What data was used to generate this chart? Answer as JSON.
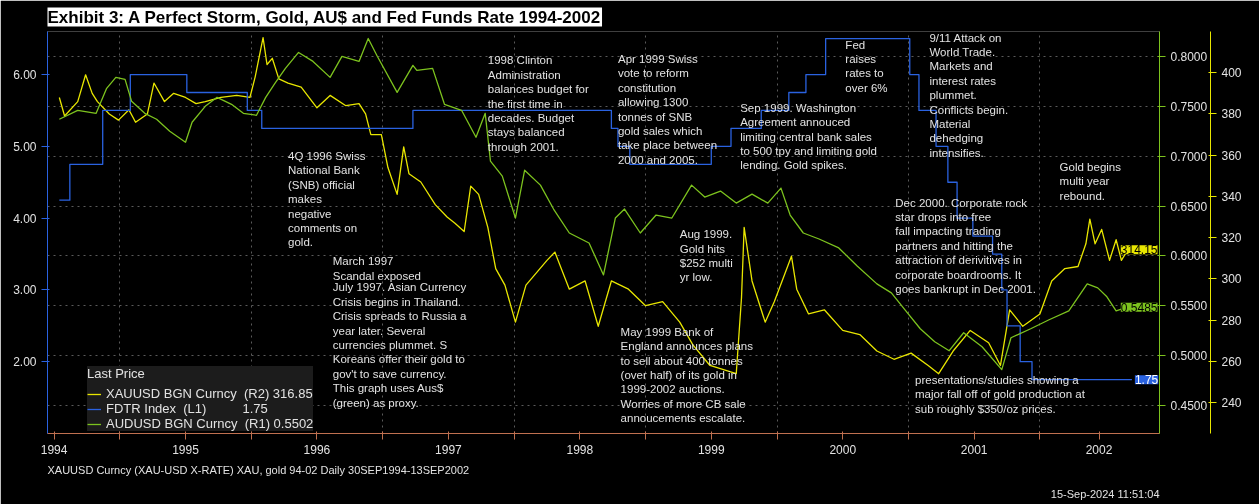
{
  "chart_data": {
    "type": "line",
    "title": "Exhibit 3: A Perfect Storm, Gold, AU$ and Fed Funds Rate 1994-2002",
    "legend_title": "Last Price",
    "legend": "bottom left",
    "grid": true,
    "xlim": [
      1994.45,
      2002.91
    ],
    "xticks": [
      {
        "value": 1994.5,
        "label": "1994"
      },
      {
        "value": 1995,
        "label": null
      },
      {
        "value": 1995.5,
        "label": "1995"
      },
      {
        "value": 1996,
        "label": null
      },
      {
        "value": 1996.5,
        "label": "1996"
      },
      {
        "value": 1997,
        "label": null
      },
      {
        "value": 1997.5,
        "label": "1997"
      },
      {
        "value": 1998,
        "label": null
      },
      {
        "value": 1998.5,
        "label": "1998"
      },
      {
        "value": 1999,
        "label": null
      },
      {
        "value": 1999.5,
        "label": "1999"
      },
      {
        "value": 2000,
        "label": null
      },
      {
        "value": 2000.5,
        "label": "2000"
      },
      {
        "value": 2001,
        "label": null
      },
      {
        "value": 2001.5,
        "label": "2001"
      },
      {
        "value": 2002,
        "label": null
      },
      {
        "value": 2002.45,
        "label": "2002"
      }
    ],
    "ylim": [
      1.0,
      6.6
    ],
    "yticks": [
      {
        "value": 2,
        "label": "2.00"
      },
      {
        "value": 3,
        "label": "3.00"
      },
      {
        "value": 4,
        "label": "4.00"
      },
      {
        "value": 5,
        "label": "5.00"
      },
      {
        "value": 6,
        "label": "6.00"
      }
    ],
    "y2lim": [
      0.422,
      0.825
    ],
    "y2ticks": [
      {
        "value": 0.45,
        "label": "0.4500"
      },
      {
        "value": 0.5,
        "label": "0.5000"
      },
      {
        "value": 0.55,
        "label": "0.5500"
      },
      {
        "value": 0.6,
        "label": "0.6000"
      },
      {
        "value": 0.65,
        "label": "0.6500"
      },
      {
        "value": 0.7,
        "label": "0.7000"
      },
      {
        "value": 0.75,
        "label": "0.7500"
      },
      {
        "value": 0.8,
        "label": "0.8000"
      }
    ],
    "y3lim": [
      225,
      420
    ],
    "y3ticks": [
      240,
      260,
      280,
      300,
      320,
      340,
      360,
      380,
      400
    ],
    "series": [
      {
        "name": "XAUUSD BGN Curncy  (R2) 316.85",
        "color": "#e8e600",
        "axis": "y3",
        "x": [
          1994.54,
          1994.58,
          1994.68,
          1994.74,
          1994.79,
          1994.83,
          1994.92,
          1994.99,
          1995.07,
          1995.12,
          1995.21,
          1995.26,
          1995.34,
          1995.41,
          1995.5,
          1995.58,
          1995.65,
          1995.77,
          1995.89,
          1995.99,
          1996.03,
          1996.09,
          1996.12,
          1996.16,
          1996.21,
          1996.28,
          1996.38,
          1996.5,
          1996.6,
          1996.72,
          1996.82,
          1996.87,
          1996.91,
          1996.99,
          1997.04,
          1997.11,
          1997.16,
          1997.2,
          1997.29,
          1997.4,
          1997.49,
          1997.55,
          1997.62,
          1997.67,
          1997.73,
          1997.8,
          1997.86,
          1997.93,
          1998.01,
          1998.09,
          1998.25,
          1998.31,
          1998.42,
          1998.54,
          1998.64,
          1998.74,
          1998.87,
          1999.0,
          1999.13,
          1999.26,
          1999.36,
          1999.49,
          1999.69,
          1999.73,
          1999.75,
          1999.81,
          1999.91,
          1999.98,
          2000.11,
          2000.15,
          2000.24,
          2000.36,
          2000.5,
          2000.63,
          2000.76,
          2000.89,
          2001.02,
          2001.15,
          2001.23,
          2001.34,
          2001.47,
          2001.61,
          2001.7,
          2001.77,
          2001.87,
          2002.0,
          2002.09,
          2002.19,
          2002.29,
          2002.35,
          2002.38,
          2002.42,
          2002.47,
          2002.53,
          2002.58,
          2002.62,
          2002.67
        ],
        "values": [
          388,
          379,
          386,
          399,
          390,
          386,
          380,
          377,
          382,
          376,
          380,
          395,
          386,
          390,
          388,
          385,
          386,
          388,
          389,
          388,
          398,
          417,
          404,
          407,
          397,
          395,
          393,
          383,
          389,
          384,
          385,
          380,
          370,
          370,
          354,
          341,
          364,
          351,
          347,
          336,
          330,
          327,
          323,
          345,
          341,
          325,
          305,
          297,
          279,
          297,
          309,
          313,
          295,
          299,
          277,
          299,
          295,
          287,
          289,
          279,
          268,
          258,
          254,
          291,
          325,
          299,
          279,
          289,
          311,
          295,
          283,
          285,
          275,
          273,
          265,
          261,
          264,
          258,
          254,
          265,
          275,
          269,
          258,
          285,
          277,
          283,
          299,
          305,
          306,
          317,
          329,
          317,
          324,
          309,
          319,
          309,
          314.15
        ],
        "value_labels": [
          null,
          null,
          null,
          null,
          null,
          null,
          null,
          null,
          null,
          null,
          null,
          null,
          null,
          null,
          null,
          null,
          null,
          null,
          null,
          null,
          null,
          null,
          null,
          null,
          null,
          null,
          null,
          null,
          null,
          null,
          null,
          null,
          null,
          null,
          null,
          null,
          null,
          null,
          null,
          null,
          null,
          null,
          null,
          null,
          null,
          null,
          null,
          null,
          null,
          null,
          null,
          null,
          null,
          null,
          null,
          null,
          null,
          null,
          null,
          null,
          null,
          null,
          null,
          null,
          null,
          null,
          null,
          null,
          null,
          null,
          null,
          null,
          null,
          null,
          null,
          null,
          null,
          null,
          null,
          null,
          null,
          null,
          null,
          null,
          null,
          null,
          null,
          null,
          null,
          null,
          null,
          null,
          null,
          null,
          null,
          null,
          "314.15"
        ]
      },
      {
        "name": "FDTR Index  (L1)          1.75",
        "color": "#2a62e0",
        "axis": "y",
        "type": "step",
        "x": [
          1994.54,
          1994.62,
          1994.87,
          1995.08,
          1995.51,
          1995.97,
          1996.08,
          1997.23,
          1998.74,
          1998.79,
          1998.88,
          1999.5,
          1999.65,
          1999.88,
          2000.09,
          2000.22,
          2000.37,
          2001.01,
          2001.08,
          2001.21,
          2001.3,
          2001.37,
          2001.49,
          2001.64,
          2001.71,
          2001.75,
          2001.85,
          2001.94,
          2002.7
        ],
        "values": [
          4.25,
          4.75,
          5.5,
          6.0,
          5.75,
          5.5,
          5.25,
          5.5,
          5.25,
          5.0,
          4.75,
          5.0,
          5.25,
          5.5,
          5.75,
          6.0,
          6.5,
          6.0,
          5.5,
          5.0,
          4.5,
          4.0,
          3.75,
          3.5,
          3.0,
          2.5,
          2.0,
          1.75,
          1.75
        ],
        "value_labels": [
          null,
          null,
          null,
          null,
          null,
          null,
          null,
          null,
          null,
          null,
          null,
          null,
          null,
          null,
          null,
          null,
          null,
          null,
          null,
          null,
          null,
          null,
          null,
          null,
          null,
          null,
          null,
          null,
          "1.75"
        ]
      },
      {
        "name": "AUDUSD BGN Curncy  (R1) 0.5502",
        "color": "#7cc21e",
        "axis": "y2",
        "x": [
          1994.54,
          1994.68,
          1994.82,
          1994.9,
          1994.97,
          1995.04,
          1995.09,
          1995.19,
          1995.28,
          1995.38,
          1995.5,
          1995.55,
          1995.65,
          1995.74,
          1995.85,
          1995.94,
          1996.04,
          1996.11,
          1996.18,
          1996.26,
          1996.36,
          1996.47,
          1996.6,
          1996.69,
          1996.82,
          1996.89,
          1996.96,
          1997.11,
          1997.23,
          1997.26,
          1997.38,
          1997.47,
          1997.6,
          1997.71,
          1997.78,
          1997.82,
          1997.91,
          1998.01,
          1998.08,
          1998.2,
          1998.3,
          1998.42,
          1998.57,
          1998.68,
          1998.77,
          1998.84,
          1998.96,
          1999.08,
          1999.2,
          1999.35,
          1999.45,
          1999.57,
          1999.69,
          1999.81,
          1999.93,
          2000.03,
          2000.1,
          2000.2,
          2000.32,
          2000.47,
          2000.61,
          2000.76,
          2000.87,
          2000.98,
          2001.09,
          2001.2,
          2001.31,
          2001.42,
          2001.56,
          2001.71,
          2001.78,
          2001.93,
          2002.07,
          2002.22,
          2002.36,
          2002.44,
          2002.51,
          2002.58,
          2002.66
        ],
        "values": [
          0.737,
          0.746,
          0.743,
          0.768,
          0.779,
          0.777,
          0.755,
          0.743,
          0.737,
          0.725,
          0.714,
          0.734,
          0.75,
          0.759,
          0.752,
          0.743,
          0.741,
          0.759,
          0.773,
          0.788,
          0.804,
          0.795,
          0.779,
          0.8,
          0.795,
          0.818,
          0.8,
          0.764,
          0.791,
          0.786,
          0.788,
          0.752,
          0.746,
          0.719,
          0.743,
          0.695,
          0.68,
          0.638,
          0.686,
          0.671,
          0.647,
          0.623,
          0.613,
          0.581,
          0.638,
          0.647,
          0.623,
          0.641,
          0.638,
          0.671,
          0.659,
          0.665,
          0.653,
          0.662,
          0.653,
          0.668,
          0.641,
          0.623,
          0.617,
          0.608,
          0.59,
          0.572,
          0.563,
          0.545,
          0.527,
          0.514,
          0.505,
          0.523,
          0.509,
          0.486,
          0.518,
          0.527,
          0.536,
          0.545,
          0.572,
          0.568,
          0.559,
          0.545,
          0.5485
        ],
        "value_labels": [
          null,
          null,
          null,
          null,
          null,
          null,
          null,
          null,
          null,
          null,
          null,
          null,
          null,
          null,
          null,
          null,
          null,
          null,
          null,
          null,
          null,
          null,
          null,
          null,
          null,
          null,
          null,
          null,
          null,
          null,
          null,
          null,
          null,
          null,
          null,
          null,
          null,
          null,
          null,
          null,
          null,
          null,
          null,
          null,
          null,
          null,
          null,
          null,
          null,
          null,
          null,
          null,
          null,
          null,
          null,
          null,
          null,
          null,
          null,
          null,
          null,
          null,
          null,
          null,
          null,
          null,
          null,
          null,
          null,
          null,
          null,
          null,
          null,
          null,
          null,
          null,
          null,
          null,
          "0.5485"
        ]
      }
    ],
    "annotations": [
      "4Q 1996 Swiss\nNational Bank\n(SNB) official\nmakes\nnegative\ncomments on\ngold.",
      "March 1997\nScandal exposed",
      "July 1997. Asian Currency\nCrisis begins in Thailand.\nCrisis spreads to Russia a\nyear later. Several\ncurrencies plummet. S\nKoreans offer their gold to\ngov't to save currency.\nThis graph uses Aus$\n(green) as proxy.",
      "1998 Clinton\nAdministration\nbalances budget for\nthe first time in\ndecades. Budget\nstays balanced\nthrough 2001.",
      "Apr 1999 Swiss\nvote to reform\nconstitution\nallowing 1300\ntonnes of SNB\ngold sales which\ntake place between\n2000 and 2005.",
      "Sep 1999. Washington\nAgreement annouced\nlimiting central bank sales\nto 500 tpy and limiting gold\nlending. Gold spikes.",
      "Fed\nraises\nrates to\nover 6%",
      "9/11 Attack on\nWorld Trade.\nMarkets and\ninterest rates\nplummet.\nConflicts begin.\nMaterial\ndehedging\nintensifies.",
      "Gold begins\nmulti year\nrebound.",
      "Dec 2000. Corporate rock\nstar drops into free\nfall impacting trading\npartners and hitting the\nattraction of derivitives in\ncorporate boardrooms. It\ngoes bankrupt in Dec 2001.",
      "Aug 1999.\nGold hits\n$252 multi\nyr low.",
      "May 1999 Bank of\nEngland announces plans\nto sell about 400 tonnes\n(over half) of its gold in\n1999-2002 auctions.\nWorries of more CB sale\nannoucements escalate.",
      "presentations/studies showing a\nmajor fall off of gold production at\nsub roughly $350/oz prices.",
      "XAUUSD Curncy (XAU-USD X-RATE) XAU, gold 94-02  Daily 30SEP1994-13SEP2002",
      "15-Sep-2024 11:51:04"
    ]
  }
}
